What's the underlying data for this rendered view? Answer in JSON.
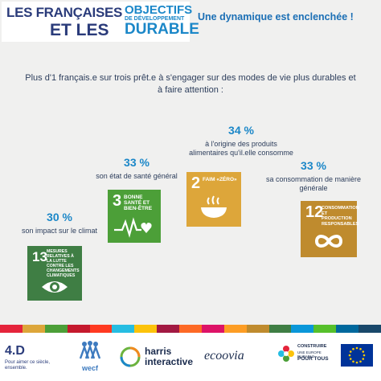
{
  "header": {
    "logo_line1": "LES FRANÇAISES",
    "logo_line2": "ET LES",
    "logo_objectifs": "OBJECTIFS",
    "logo_developpement": "DE DÉVELOPPEMENT",
    "logo_durable": "DURABLE",
    "tagline": "Une dynamique est enclenchée !"
  },
  "intro": "Plus d'1 français.e sur trois prêt.e à s'engager sur des modes de vie plus durables et à faire attention :",
  "stats": [
    {
      "pct": "30 %",
      "desc": "son impact sur le climat"
    },
    {
      "pct": "33 %",
      "desc": "son état de santé général"
    },
    {
      "pct": "34 %",
      "desc": "à l'origine des produits alimentaires qu'il.elle consomme"
    },
    {
      "pct": "33 %",
      "desc": "sa consommation de manière générale"
    }
  ],
  "tiles": [
    {
      "num": "13",
      "title": "MESURES RELATIVES À LA LUTTE CONTRE LES CHANGEMENTS CLIMATIQUES",
      "color": "#3f7e44",
      "icon": "eye-globe-icon"
    },
    {
      "num": "3",
      "title": "BONNE SANTÉ ET BIEN-ÊTRE",
      "color": "#4c9f38",
      "icon": "heartbeat-icon"
    },
    {
      "num": "2",
      "title": "FAIM «ZÉRO»",
      "color": "#dda63a",
      "icon": "bowl-icon"
    },
    {
      "num": "12",
      "title": "CONSOMMATION ET PRODUCTION RESPONSABLES",
      "color": "#bf8b2e",
      "icon": "infinity-icon"
    }
  ],
  "footer": {
    "fourd_logo": "4.D",
    "fourd_slogan": "Pour aimer ce siècle, ensemble.",
    "wecf": "wecf",
    "harris_line1": "harris",
    "harris_line2": "interactive",
    "ecoovia": "ecoovia",
    "construire_line1": "CONSTRUIRE",
    "construire_line2": "UNE EUROPE DURABLE",
    "construire_line3": "POUR TOUS"
  },
  "colors": {
    "accent": "#1b87c8",
    "navy": "#2a3b7a",
    "eu_blue": "#003399",
    "eu_star": "#ffcc00"
  },
  "rainbow": [
    "#e5243b",
    "#dda63a",
    "#4c9f38",
    "#c5192d",
    "#ff3a21",
    "#26bde2",
    "#fcc30b",
    "#a21942",
    "#fd6925",
    "#dd1367",
    "#fd9d24",
    "#bf8b2e",
    "#3f7e44",
    "#0a97d9",
    "#56c02b",
    "#00689d",
    "#19486a"
  ]
}
